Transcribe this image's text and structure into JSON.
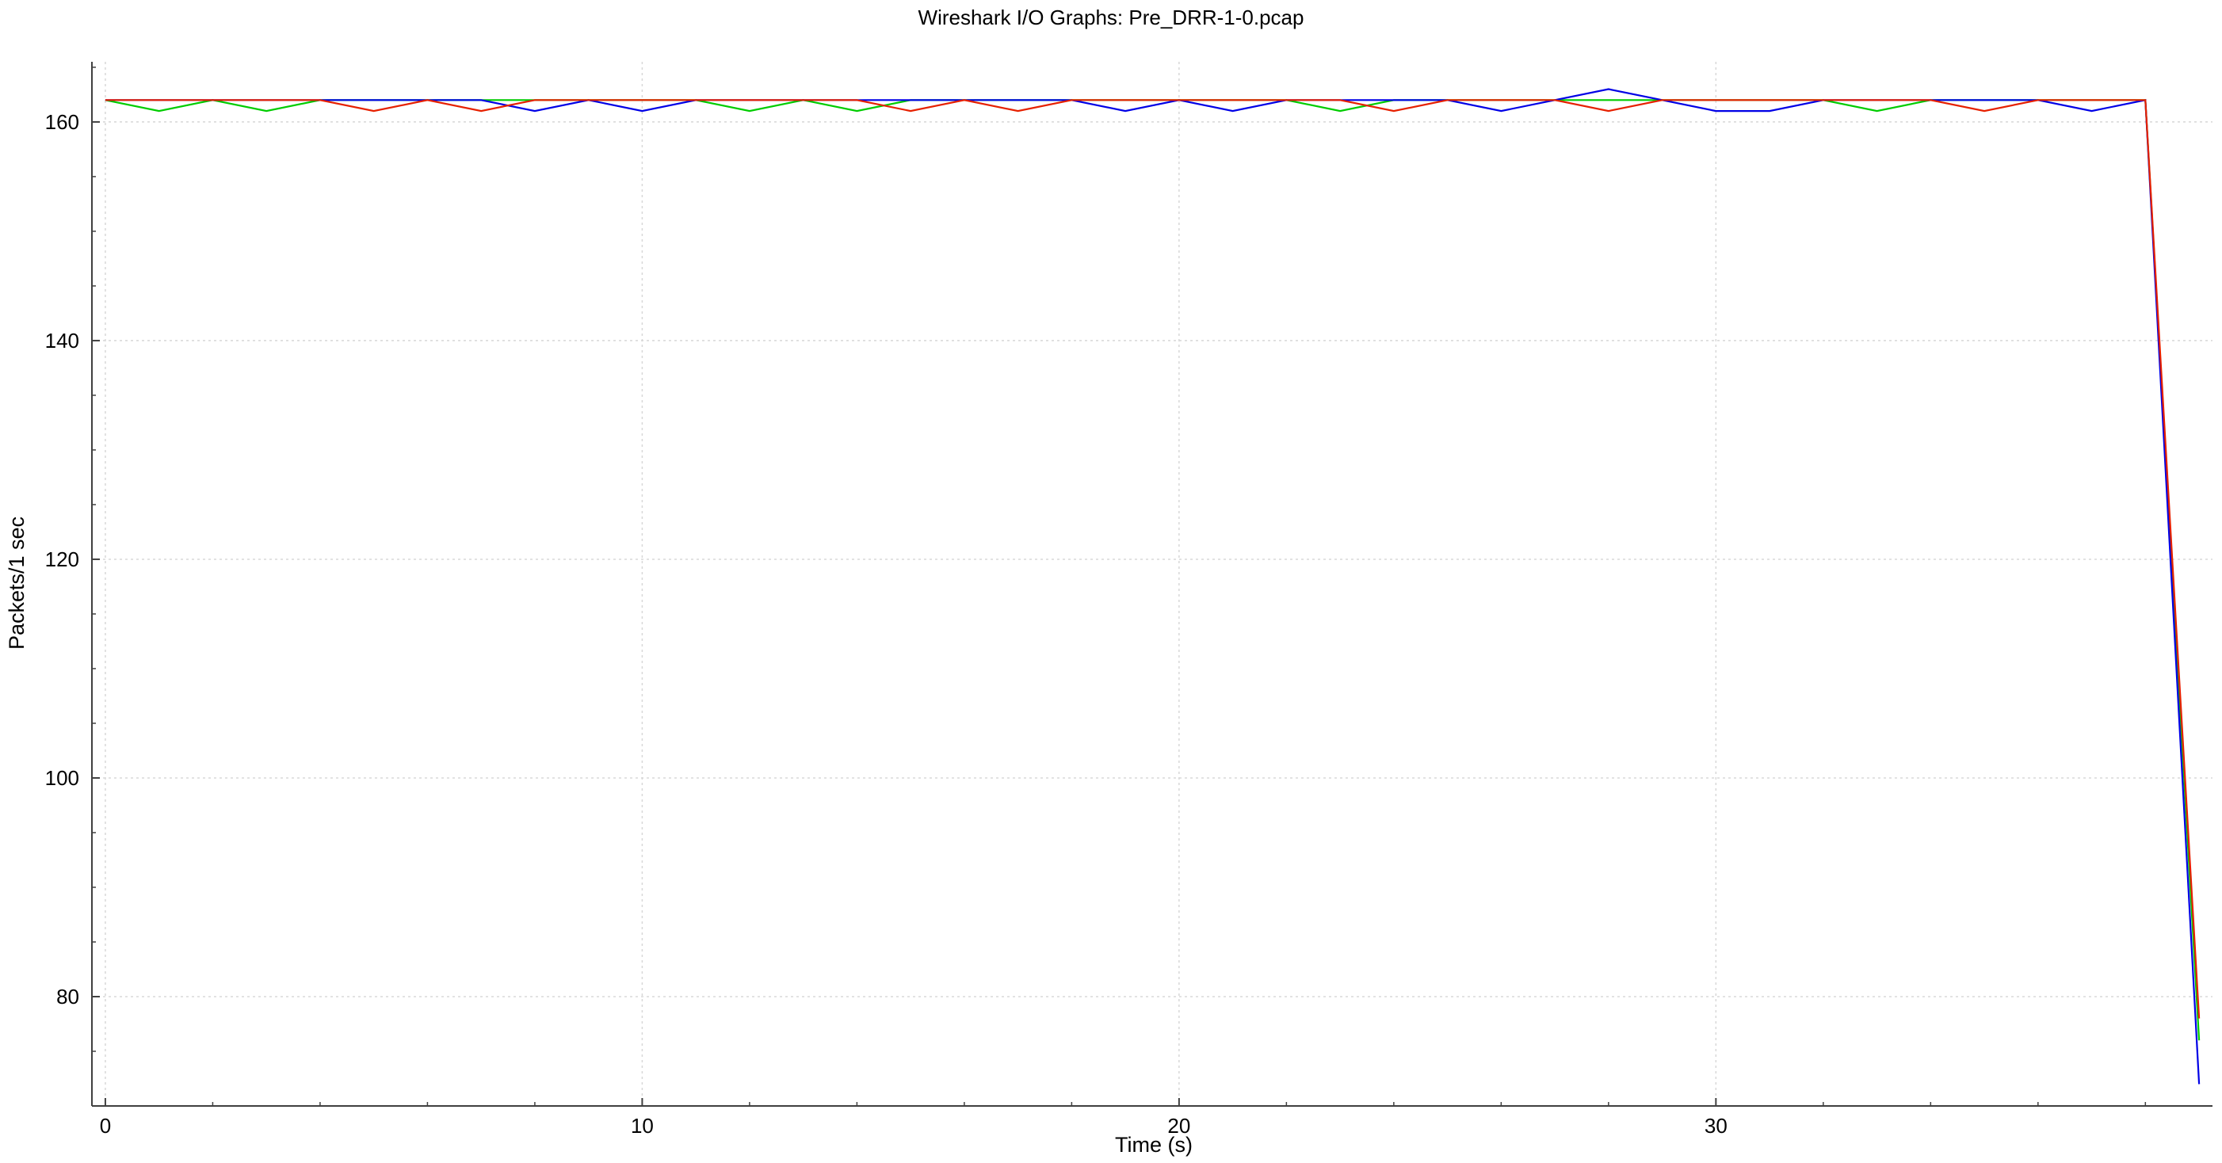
{
  "window": {
    "title": "Wireshark I/O Graphs: Pre_DRR-1-0.pcap"
  },
  "chart_data": {
    "type": "line",
    "title": "Wireshark I/O Graphs: Pre_DRR-1-0.pcap",
    "xlabel": "Time (s)",
    "ylabel": "Packets/1 sec",
    "xlim": [
      -0.25,
      39.25
    ],
    "ylim": [
      70,
      165.5
    ],
    "x_ticks": [
      0,
      10,
      20,
      30
    ],
    "y_ticks": [
      80,
      100,
      120,
      140,
      160
    ],
    "grid": true,
    "legend": "none",
    "x": [
      0,
      1,
      2,
      3,
      4,
      5,
      6,
      7,
      8,
      9,
      10,
      11,
      12,
      13,
      14,
      15,
      16,
      17,
      18,
      19,
      20,
      21,
      22,
      23,
      24,
      25,
      26,
      27,
      28,
      29,
      30,
      31,
      32,
      33,
      34,
      35,
      36,
      37,
      38,
      39
    ],
    "series": [
      {
        "color": "#00cc00",
        "values": [
          162,
          161,
          162,
          161,
          162,
          162,
          162,
          162,
          162,
          162,
          162,
          162,
          161,
          162,
          161,
          162,
          162,
          162,
          162,
          162,
          162,
          162,
          162,
          161,
          162,
          162,
          162,
          162,
          162,
          162,
          162,
          162,
          162,
          161,
          162,
          162,
          162,
          162,
          162,
          76
        ]
      },
      {
        "color": "#0000e6",
        "values": [
          162,
          162,
          162,
          162,
          162,
          162,
          162,
          162,
          161,
          162,
          161,
          162,
          162,
          162,
          162,
          162,
          162,
          162,
          162,
          161,
          162,
          161,
          162,
          162,
          162,
          162,
          161,
          162,
          163,
          162,
          161,
          161,
          162,
          162,
          162,
          162,
          162,
          161,
          162,
          72
        ]
      },
      {
        "color": "#e62000",
        "values": [
          162,
          162,
          162,
          162,
          162,
          161,
          162,
          161,
          162,
          162,
          162,
          162,
          162,
          162,
          162,
          161,
          162,
          161,
          162,
          162,
          162,
          162,
          162,
          162,
          161,
          162,
          162,
          162,
          161,
          162,
          162,
          162,
          162,
          162,
          162,
          161,
          162,
          162,
          162,
          78
        ]
      }
    ]
  }
}
